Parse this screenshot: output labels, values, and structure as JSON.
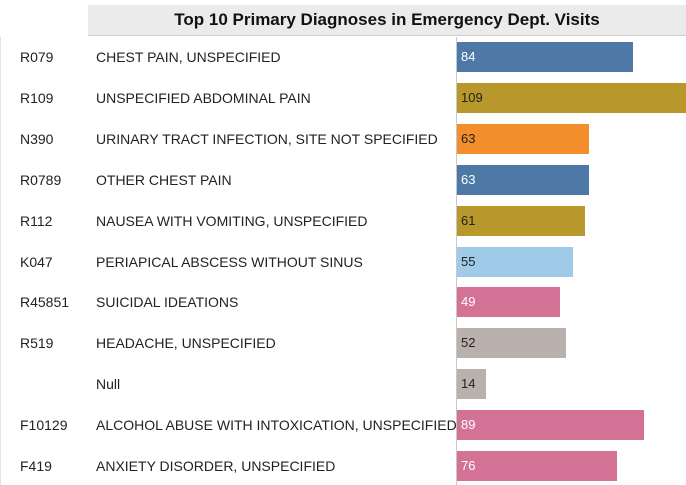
{
  "chart_data": {
    "type": "bar",
    "orientation": "horizontal",
    "title": "Top 10 Primary Diagnoses in Emergency Dept. Visits",
    "codes": [
      "R079",
      "R109",
      "N390",
      "R0789",
      "R112",
      "K047",
      "R45851",
      "R519",
      null,
      "F10129",
      "F419"
    ],
    "categories": [
      "CHEST PAIN, UNSPECIFIED",
      "UNSPECIFIED ABDOMINAL PAIN",
      "URINARY TRACT INFECTION, SITE NOT SPECIFIED",
      "OTHER CHEST PAIN",
      "NAUSEA WITH VOMITING, UNSPECIFIED",
      "PERIAPICAL ABSCESS WITHOUT SINUS",
      "SUICIDAL IDEATIONS",
      "HEADACHE, UNSPECIFIED",
      "Null",
      "ALCOHOL ABUSE WITH INTOXICATION, UNSPECIFIED",
      "ANXIETY DISORDER, UNSPECIFIED"
    ],
    "values": [
      84,
      109,
      63,
      63,
      61,
      55,
      49,
      52,
      14,
      89,
      76
    ],
    "colors": [
      "#4e79a7",
      "#b8972b",
      "#f28e2b",
      "#4e79a7",
      "#b8972b",
      "#a0cbe8",
      "#d37295",
      "#bab0ac",
      "#bab0ac",
      "#d37295",
      "#d37295"
    ]
  }
}
